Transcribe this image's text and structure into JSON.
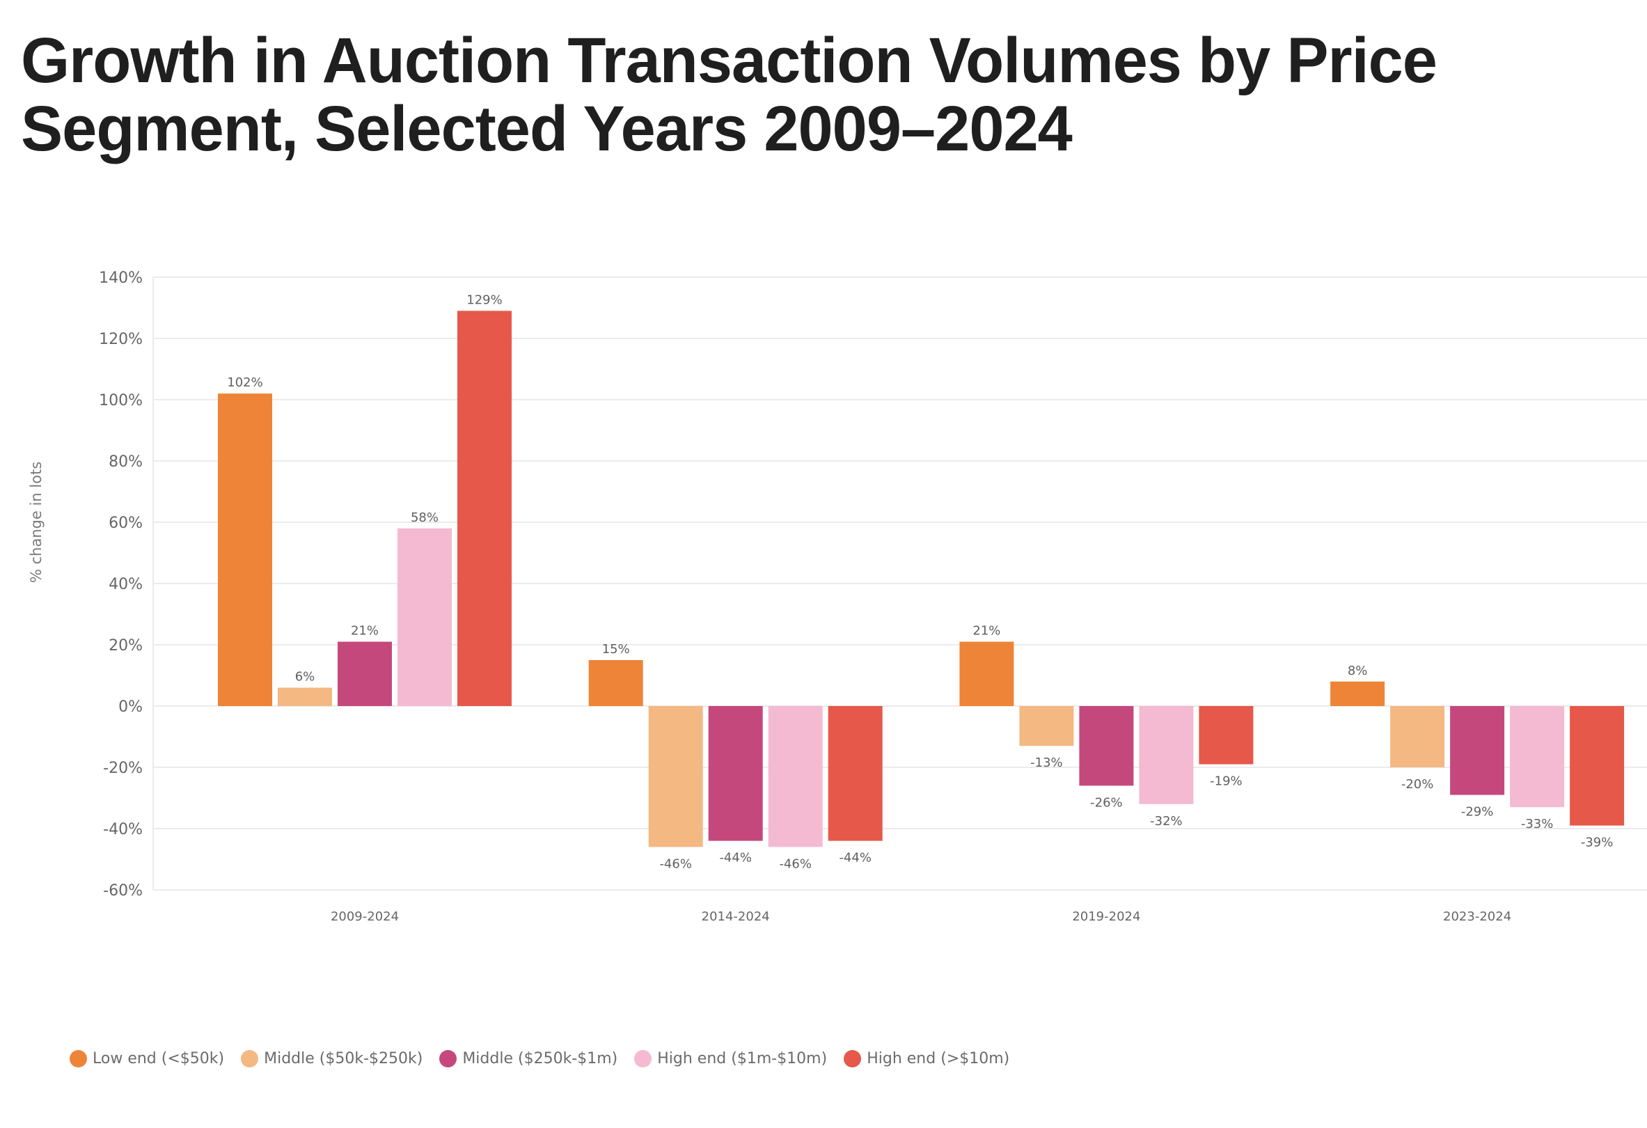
{
  "title_lines": [
    "Growth in Auction Transaction Volumes by Price",
    "Segment, Selected Years 2009–2024"
  ],
  "chart_data": {
    "type": "bar",
    "title": "Growth in Auction Transaction Volumes by Price Segment, Selected Years 2009–2024",
    "xlabel": "",
    "ylabel": "% change in lots",
    "ylim": [
      -60,
      140
    ],
    "yticks": [
      140,
      120,
      100,
      80,
      60,
      40,
      20,
      0,
      -20,
      -40,
      -60
    ],
    "ytick_labels": [
      "140%",
      "120%",
      "100%",
      "80%",
      "60%",
      "40%",
      "20%",
      "0%",
      "-20%",
      "-40%",
      "-60%"
    ],
    "grid": true,
    "legend_position": "bottom-left",
    "categories": [
      "2009-2024",
      "2014-2024",
      "2019-2024",
      "2023-2024"
    ],
    "series": [
      {
        "name": "Low end (<$50k)",
        "color": "#EE8437",
        "values": [
          102,
          15,
          21,
          8
        ],
        "labels": [
          "102%",
          "15%",
          "21%",
          "8%"
        ]
      },
      {
        "name": "Middle ($50k-$250k)",
        "color": "#F4B882",
        "values": [
          6,
          -46,
          -13,
          -20
        ],
        "labels": [
          "6%",
          "-46%",
          "-13%",
          "-20%"
        ]
      },
      {
        "name": "Middle ($250k-$1m)",
        "color": "#C5487D",
        "values": [
          21,
          -44,
          -26,
          -29
        ],
        "labels": [
          "21%",
          "-44%",
          "-26%",
          "-29%"
        ]
      },
      {
        "name": "High end ($1m-$10m)",
        "color": "#F4BAD2",
        "values": [
          58,
          -46,
          -32,
          -33
        ],
        "labels": [
          "58%",
          "-46%",
          "-32%",
          "-33%"
        ]
      },
      {
        "name": "High end (>$10m)",
        "color": "#E5584A",
        "values": [
          129,
          -44,
          -19,
          -39
        ],
        "labels": [
          "129%",
          "-44%",
          "-19%",
          "-39%"
        ]
      }
    ]
  },
  "colors": {
    "title": "#1f1f1f",
    "gridline": "#ebebeb",
    "axis_text": "#666666"
  }
}
